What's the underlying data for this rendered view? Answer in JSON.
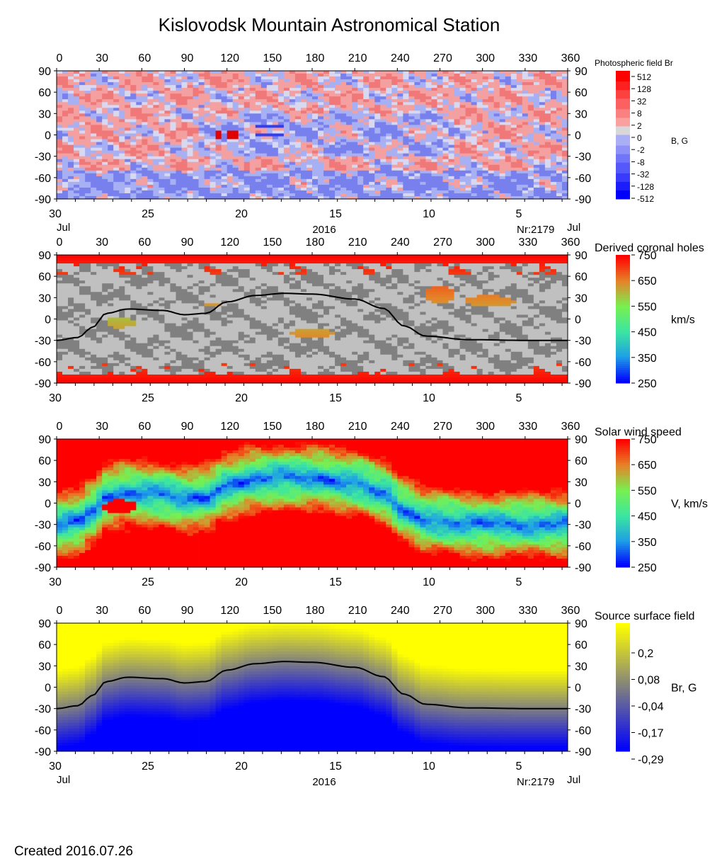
{
  "title": "Kislovodsk Mountain Astronomical Station",
  "created": "Created  2016.07.26",
  "axes": {
    "longitude_ticks": [
      "0",
      "30",
      "60",
      "90",
      "120",
      "150",
      "180",
      "210",
      "240",
      "270",
      "300",
      "330",
      "360"
    ],
    "latitude_ticks": [
      "90",
      "60",
      "30",
      "0",
      "-30",
      "-60",
      "-90"
    ],
    "date_ticks": [
      "30",
      "25",
      "20",
      "15",
      "10",
      "5"
    ],
    "month_left": "Jul",
    "month_right": "Jul",
    "year": "2016",
    "rotation": "Nr:2179"
  },
  "neutral_line": {
    "lon": [
      0,
      15,
      25,
      35,
      50,
      75,
      90,
      105,
      120,
      140,
      160,
      180,
      210,
      230,
      245,
      260,
      290,
      330,
      360
    ],
    "lat": [
      -30,
      -26,
      -12,
      8,
      14,
      12,
      6,
      8,
      24,
      33,
      36,
      35,
      28,
      15,
      -10,
      -24,
      -29,
      -30,
      -30
    ]
  },
  "chart_data": [
    {
      "type": "heatmap",
      "title": "Photospheric field Br",
      "unit_label": "B, G",
      "xlim": [
        0,
        360
      ],
      "ylim": [
        -90,
        90
      ],
      "colorbar_ticks": [
        "512",
        "128",
        "32",
        "8",
        "2",
        "0",
        "-2",
        "-8",
        "-32",
        "-128",
        "-512"
      ],
      "colors": {
        "positive": "#f49a9a",
        "negative": "#9aa2f2",
        "zero": "#d8d8d8",
        "strong_pos": "#ff0000",
        "strong_neg": "#0000ff"
      }
    },
    {
      "type": "heatmap",
      "title": "Derived coronal holes",
      "unit_label": "km/s",
      "xlim": [
        0,
        360
      ],
      "ylim": [
        -90,
        90
      ],
      "colorbar_ticks": [
        "750",
        "650",
        "550",
        "450",
        "350",
        "250"
      ],
      "colors": {
        "closed_light": "#c0c0c0",
        "closed_dark": "#808080",
        "open": "#f03018"
      }
    },
    {
      "type": "heatmap",
      "title": "Solar wind speed",
      "unit_label": "V, km/s",
      "xlim": [
        0,
        360
      ],
      "ylim": [
        -90,
        90
      ],
      "colorbar_ticks": [
        "750",
        "650",
        "550",
        "450",
        "350",
        "250"
      ]
    },
    {
      "type": "heatmap",
      "title": "Source surface field",
      "unit_label": "Br, G",
      "xlim": [
        0,
        360
      ],
      "ylim": [
        -90,
        90
      ],
      "colorbar_ticks": [
        "0,2",
        "0,08",
        "-0,04",
        "-0,17",
        "-0,29"
      ],
      "colors": {
        "max": "#ffff00",
        "mid": "#808080",
        "min": "#0000ff"
      }
    }
  ]
}
